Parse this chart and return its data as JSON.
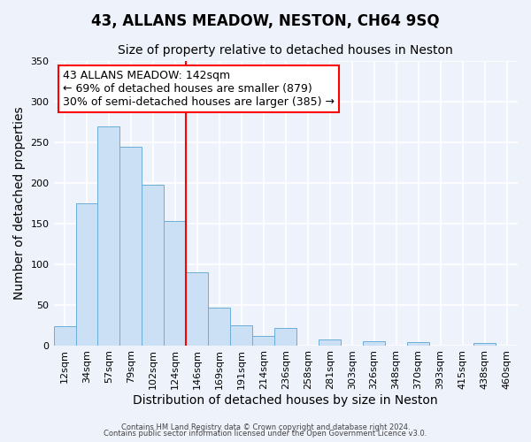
{
  "title": "43, ALLANS MEADOW, NESTON, CH64 9SQ",
  "subtitle": "Size of property relative to detached houses in Neston",
  "xlabel": "Distribution of detached houses by size in Neston",
  "ylabel": "Number of detached properties",
  "bar_labels": [
    "12sqm",
    "34sqm",
    "57sqm",
    "79sqm",
    "102sqm",
    "124sqm",
    "146sqm",
    "169sqm",
    "191sqm",
    "214sqm",
    "236sqm",
    "258sqm",
    "281sqm",
    "303sqm",
    "326sqm",
    "348sqm",
    "370sqm",
    "393sqm",
    "415sqm",
    "438sqm",
    "460sqm"
  ],
  "bar_values": [
    23,
    175,
    270,
    245,
    198,
    153,
    90,
    46,
    25,
    12,
    21,
    0,
    7,
    0,
    5,
    0,
    4,
    0,
    0,
    3,
    0
  ],
  "bar_color": "#cce0f5",
  "bar_edge_color": "#6baed6",
  "vline_index": 6,
  "vline_color": "red",
  "annotation_title": "43 ALLANS MEADOW: 142sqm",
  "annotation_line1": "← 69% of detached houses are smaller (879)",
  "annotation_line2": "30% of semi-detached houses are larger (385) →",
  "annotation_box_color": "white",
  "annotation_box_edge": "red",
  "ylim": [
    0,
    350
  ],
  "yticks": [
    0,
    50,
    100,
    150,
    200,
    250,
    300,
    350
  ],
  "footer1": "Contains HM Land Registry data © Crown copyright and database right 2024.",
  "footer2": "Contains public sector information licensed under the Open Government Licence v3.0.",
  "background_color": "#eef2fb",
  "grid_color": "white",
  "title_fontsize": 12,
  "subtitle_fontsize": 10,
  "tick_fontsize": 8,
  "label_fontsize": 10,
  "annotation_fontsize": 9
}
